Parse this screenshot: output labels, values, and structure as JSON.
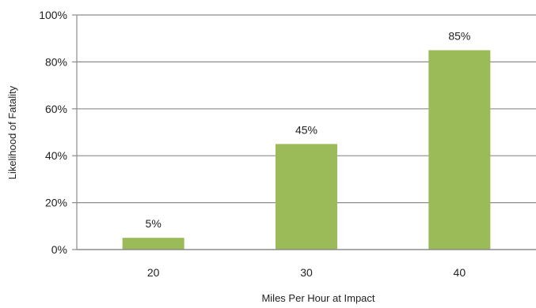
{
  "chart_data": {
    "type": "bar",
    "categories": [
      "20",
      "30",
      "40"
    ],
    "values": [
      5,
      45,
      85
    ],
    "data_labels": [
      "5%",
      "45%",
      "85%"
    ],
    "title": "",
    "xlabel": "Miles Per Hour at Impact",
    "ylabel": "Likelihood  of Fatality",
    "ylim": [
      0,
      100
    ],
    "yticks": [
      0,
      20,
      40,
      60,
      80,
      100
    ],
    "ytick_labels": [
      "0%",
      "20%",
      "40%",
      "60%",
      "80%",
      "100%"
    ],
    "grid": true,
    "legend": "none",
    "colors": {
      "bar": "#9bbb59",
      "grid": "#8c8c8c",
      "axis": "#8c8c8c",
      "text": "#222222"
    }
  }
}
